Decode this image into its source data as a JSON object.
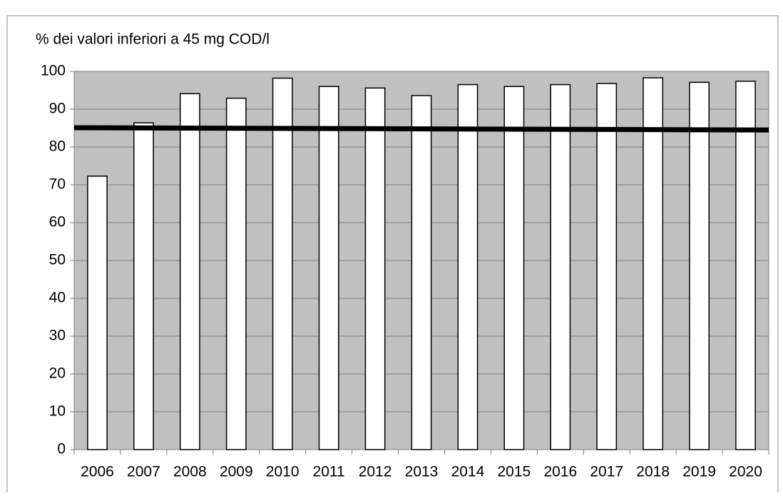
{
  "chart_data": {
    "type": "bar",
    "y_label": "% dei valori inferiori a 45 mg COD/l",
    "categories": [
      "2006",
      "2007",
      "2008",
      "2009",
      "2010",
      "2011",
      "2012",
      "2013",
      "2014",
      "2015",
      "2016",
      "2017",
      "2018",
      "2019",
      "2020"
    ],
    "values": [
      72.3,
      86.4,
      94.1,
      92.9,
      98.2,
      96.0,
      95.6,
      93.6,
      96.5,
      96.0,
      96.5,
      96.8,
      98.3,
      97.1,
      97.4
    ],
    "color": "#ffffff",
    "reference_line": {
      "values": [
        85.1,
        84.5
      ],
      "color": "#000000"
    },
    "ylim": [
      0,
      100
    ],
    "yticks": [
      0,
      10,
      20,
      30,
      40,
      50,
      60,
      70,
      80,
      90,
      100
    ],
    "grid": true
  }
}
